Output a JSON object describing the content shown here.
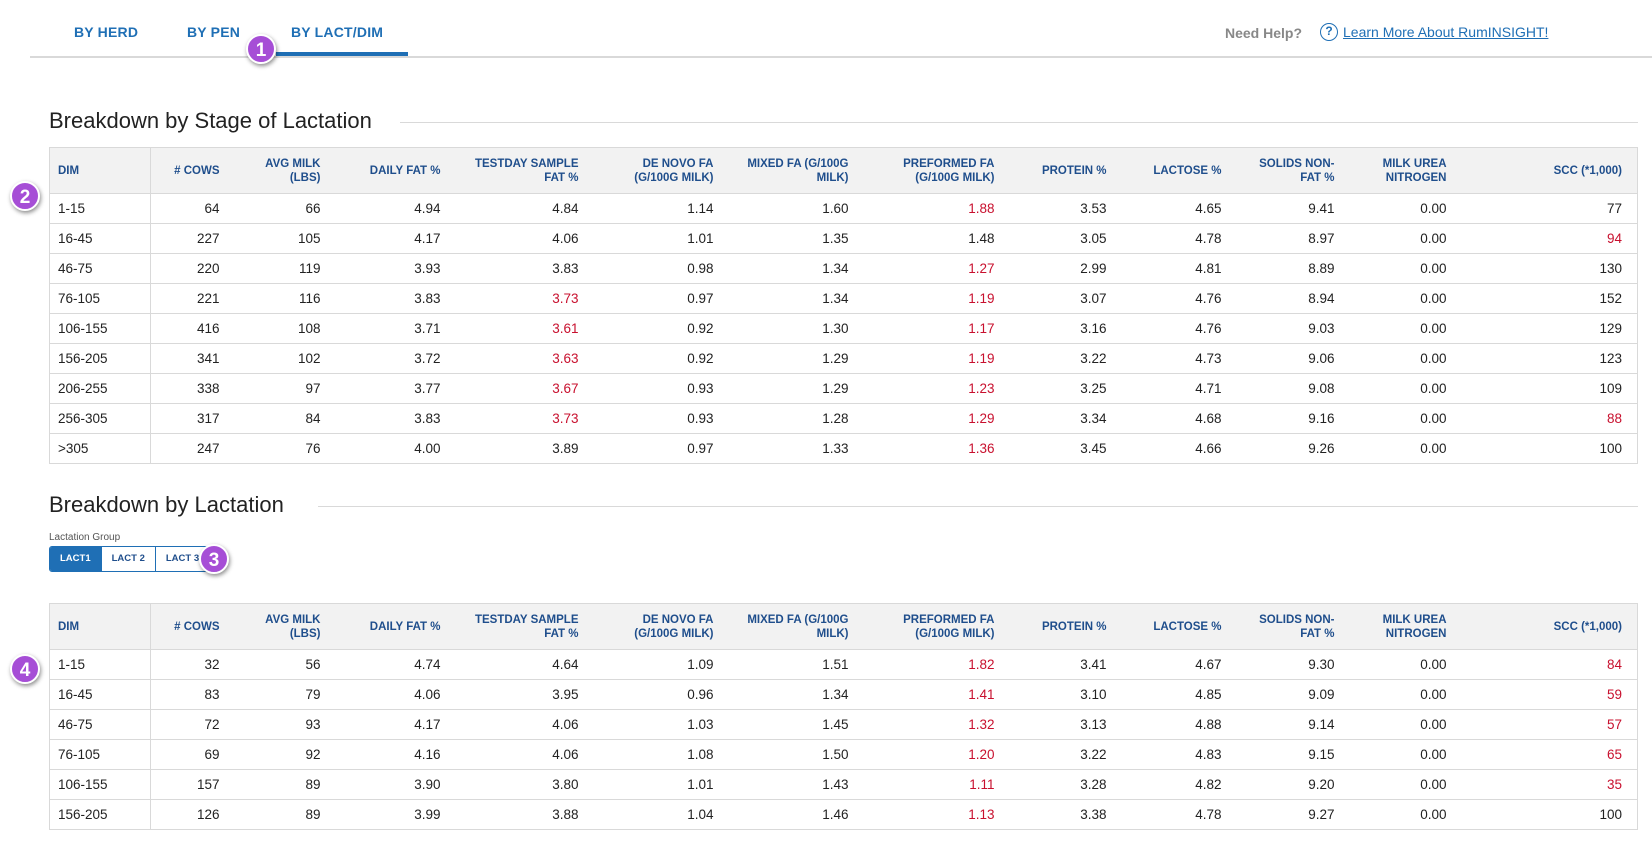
{
  "tabs": [
    {
      "label": "BY HERD"
    },
    {
      "label": "BY PEN"
    },
    {
      "label": "BY LACT/DIM"
    }
  ],
  "help": {
    "label": "Need Help?",
    "link": "Learn More About RumINSIGHT!"
  },
  "colors": {
    "accent": "#1f6fb5",
    "alert": "#c8102e",
    "badge": "#a64ed6"
  },
  "badges": [
    "1",
    "2",
    "3",
    "4"
  ],
  "columns": [
    "DIM",
    "# COWS",
    "AVG MILK (LBS)",
    "DAILY FAT %",
    "TESTDAY SAMPLE FAT %",
    "DE NOVO FA (G/100G MILK)",
    "MIXED FA (G/100G MILK)",
    "PREFORMED FA (G/100G MILK)",
    "PROTEIN %",
    "LACTOSE %",
    "SOLIDS NON-FAT %",
    "MILK UREA NITROGEN",
    "SCC (*1,000)"
  ],
  "stage_section": {
    "title": "Breakdown by Stage of Lactation",
    "rows": [
      [
        "1-15",
        "64",
        "66",
        "4.94",
        "4.84",
        "1.14",
        "1.60",
        "1.88",
        "3.53",
        "4.65",
        "9.41",
        "0.00",
        "77"
      ],
      [
        "16-45",
        "227",
        "105",
        "4.17",
        "4.06",
        "1.01",
        "1.35",
        "1.48",
        "3.05",
        "4.78",
        "8.97",
        "0.00",
        "94"
      ],
      [
        "46-75",
        "220",
        "119",
        "3.93",
        "3.83",
        "0.98",
        "1.34",
        "1.27",
        "2.99",
        "4.81",
        "8.89",
        "0.00",
        "130"
      ],
      [
        "76-105",
        "221",
        "116",
        "3.83",
        "3.73",
        "0.97",
        "1.34",
        "1.19",
        "3.07",
        "4.76",
        "8.94",
        "0.00",
        "152"
      ],
      [
        "106-155",
        "416",
        "108",
        "3.71",
        "3.61",
        "0.92",
        "1.30",
        "1.17",
        "3.16",
        "4.76",
        "9.03",
        "0.00",
        "129"
      ],
      [
        "156-205",
        "341",
        "102",
        "3.72",
        "3.63",
        "0.92",
        "1.29",
        "1.19",
        "3.22",
        "4.73",
        "9.06",
        "0.00",
        "123"
      ],
      [
        "206-255",
        "338",
        "97",
        "3.77",
        "3.67",
        "0.93",
        "1.29",
        "1.23",
        "3.25",
        "4.71",
        "9.08",
        "0.00",
        "109"
      ],
      [
        "256-305",
        "317",
        "84",
        "3.83",
        "3.73",
        "0.93",
        "1.28",
        "1.29",
        "3.34",
        "4.68",
        "9.16",
        "0.00",
        "88"
      ],
      [
        ">305",
        "247",
        "76",
        "4.00",
        "3.89",
        "0.97",
        "1.33",
        "1.36",
        "3.45",
        "4.66",
        "9.26",
        "0.00",
        "100"
      ]
    ],
    "red": [
      [
        7,
        12
      ],
      [
        1,
        12
      ],
      [
        2,
        7
      ],
      [
        3,
        4
      ],
      [
        3,
        7
      ],
      [
        4,
        4
      ],
      [
        4,
        7
      ],
      [
        5,
        4
      ],
      [
        5,
        7
      ],
      [
        6,
        4
      ],
      [
        6,
        7
      ],
      [
        7,
        4
      ],
      [
        7,
        7
      ],
      [
        8,
        7
      ],
      [
        0,
        7
      ]
    ]
  },
  "lact_section": {
    "title": "Breakdown by Lactation",
    "group_label": "Lactation Group",
    "groups": [
      "LACT1",
      "LACT 2",
      "LACT 3+"
    ],
    "selected": "LACT1",
    "rows": [
      [
        "1-15",
        "32",
        "56",
        "4.74",
        "4.64",
        "1.09",
        "1.51",
        "1.82",
        "3.41",
        "4.67",
        "9.30",
        "0.00",
        "84"
      ],
      [
        "16-45",
        "83",
        "79",
        "4.06",
        "3.95",
        "0.96",
        "1.34",
        "1.41",
        "3.10",
        "4.85",
        "9.09",
        "0.00",
        "59"
      ],
      [
        "46-75",
        "72",
        "93",
        "4.17",
        "4.06",
        "1.03",
        "1.45",
        "1.32",
        "3.13",
        "4.88",
        "9.14",
        "0.00",
        "57"
      ],
      [
        "76-105",
        "69",
        "92",
        "4.16",
        "4.06",
        "1.08",
        "1.50",
        "1.20",
        "3.22",
        "4.83",
        "9.15",
        "0.00",
        "65"
      ],
      [
        "106-155",
        "157",
        "89",
        "3.90",
        "3.80",
        "1.01",
        "1.43",
        "1.11",
        "3.28",
        "4.82",
        "9.20",
        "0.00",
        "35"
      ],
      [
        "156-205",
        "126",
        "89",
        "3.99",
        "3.88",
        "1.04",
        "1.46",
        "1.13",
        "3.38",
        "4.78",
        "9.27",
        "0.00",
        "100"
      ]
    ],
    "red": [
      [
        0,
        7
      ],
      [
        0,
        12
      ],
      [
        1,
        7
      ],
      [
        1,
        12
      ],
      [
        2,
        7
      ],
      [
        2,
        12
      ],
      [
        3,
        7
      ],
      [
        3,
        12
      ],
      [
        4,
        7
      ],
      [
        4,
        12
      ],
      [
        5,
        7
      ]
    ]
  }
}
